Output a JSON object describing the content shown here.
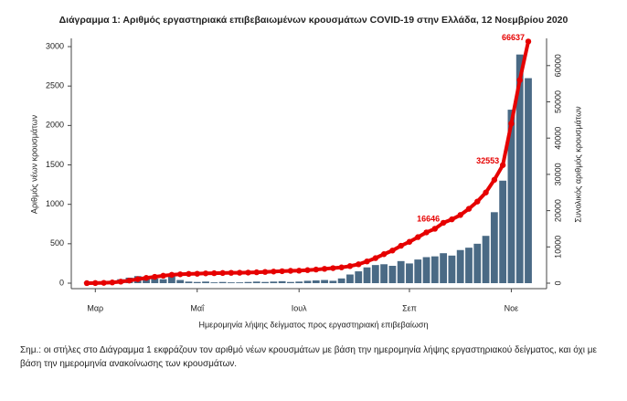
{
  "chart_data": {
    "type": "bar-line",
    "title": "Διάγραμμα 1: Αριθμός εργαστηριακά επιβεβαιωμένων κρουσμάτων COVID-19 στην Ελλάδα, 12 Νοεμβρίου 2020",
    "xlabel": "Ημερομηνία λήψης δείγματος προς εργαστηριακή επιβεβαίωση",
    "ylabel": "Αριθμός νέων κρουσμάτων",
    "y2label": "Συνολικός αριθμός κρουσμάτων",
    "categories": [
      null,
      "Μαρ",
      null,
      null,
      null,
      null,
      null,
      null,
      null,
      null,
      null,
      null,
      null,
      "Μαΐ",
      null,
      null,
      null,
      null,
      null,
      null,
      null,
      null,
      null,
      null,
      null,
      "Ιουλ",
      null,
      null,
      null,
      null,
      null,
      null,
      null,
      null,
      null,
      null,
      null,
      null,
      "Σεπ",
      null,
      null,
      null,
      null,
      null,
      null,
      null,
      null,
      null,
      null,
      null,
      "Νοε",
      null,
      null
    ],
    "series": [
      {
        "color": "#4a6a85",
        "values": [
          1,
          3,
          20,
          30,
          50,
          70,
          90,
          80,
          60,
          50,
          100,
          40,
          20,
          15,
          20,
          10,
          15,
          10,
          10,
          15,
          20,
          15,
          20,
          25,
          15,
          20,
          30,
          35,
          40,
          30,
          60,
          110,
          150,
          200,
          230,
          240,
          220,
          280,
          250,
          300,
          330,
          340,
          380,
          350,
          420,
          450,
          500,
          600,
          900,
          1300,
          2200,
          2900,
          2600
        ]
      },
      {
        "color": "#e60000",
        "axis": "y2",
        "values": [
          10,
          30,
          90,
          200,
          420,
          720,
          1100,
          1450,
          1750,
          2050,
          2300,
          2450,
          2550,
          2600,
          2700,
          2750,
          2800,
          2850,
          2880,
          2920,
          3000,
          3100,
          3200,
          3300,
          3400,
          3450,
          3600,
          3750,
          3950,
          4150,
          4350,
          4700,
          5200,
          6000,
          6900,
          8000,
          9000,
          10300,
          11400,
          12700,
          14000,
          15000,
          16646,
          17600,
          18800,
          20500,
          22500,
          25000,
          28500,
          32553,
          44000,
          56000,
          66637
        ],
        "value_labels": [
          null,
          null,
          null,
          null,
          null,
          null,
          null,
          null,
          null,
          null,
          null,
          null,
          null,
          null,
          null,
          null,
          null,
          null,
          null,
          null,
          null,
          null,
          null,
          null,
          null,
          null,
          null,
          null,
          null,
          null,
          null,
          null,
          null,
          null,
          null,
          null,
          null,
          null,
          null,
          null,
          null,
          null,
          "16646",
          null,
          null,
          null,
          null,
          null,
          null,
          "32553",
          null,
          null,
          "66637"
        ]
      }
    ],
    "ylim": [
      0,
      3070
    ],
    "yticks": [
      0,
      500,
      1000,
      1500,
      2000,
      2500,
      3000
    ],
    "y2lim": [
      0,
      66750
    ],
    "y2ticks": [
      0,
      10000,
      20000,
      30000,
      40000,
      50000,
      60000
    ],
    "note": "Σημ.: οι στήλες στο Διάγραμμα 1 εκφράζουν τον αριθμό νέων κρουσμάτων με βάση την ημερομηνία λήψης εργαστηριακού δείγματος, και όχι με βάση την ημερομηνία ανακοίνωσης των κρουσμάτων."
  }
}
